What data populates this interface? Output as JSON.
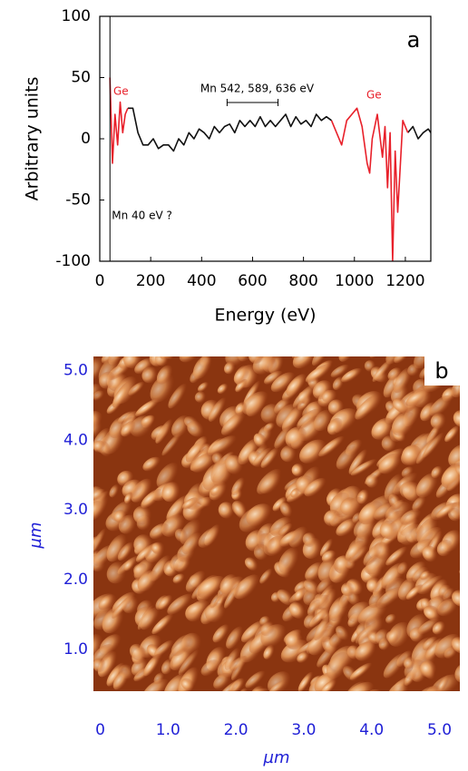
{
  "chart_data": [
    {
      "type": "line",
      "panel_label": "a",
      "xlabel": "Energy (eV)",
      "ylabel": "Arbitrary units",
      "x": [
        40,
        50,
        60,
        70,
        80,
        90,
        100,
        110,
        130,
        150,
        170,
        190,
        210,
        230,
        250,
        270,
        290,
        310,
        330,
        350,
        370,
        390,
        410,
        430,
        450,
        470,
        490,
        510,
        530,
        550,
        570,
        590,
        610,
        630,
        650,
        670,
        690,
        710,
        730,
        750,
        770,
        790,
        810,
        830,
        850,
        870,
        890,
        910,
        930,
        950,
        970,
        990,
        1010,
        1030,
        1050,
        1060,
        1070,
        1090,
        1110,
        1120,
        1130,
        1140,
        1150,
        1160,
        1170,
        1190,
        1210,
        1230,
        1250,
        1270,
        1290,
        1300
      ],
      "series": [
        {
          "color": "#111111",
          "values": [
            null,
            null,
            null,
            null,
            null,
            null,
            null,
            25,
            25,
            5,
            -5,
            -5,
            0,
            -8,
            -5,
            -5,
            -10,
            0,
            -5,
            5,
            0,
            8,
            5,
            0,
            10,
            5,
            10,
            12,
            5,
            15,
            10,
            15,
            10,
            18,
            10,
            15,
            10,
            15,
            20,
            10,
            18,
            12,
            15,
            10,
            20,
            15,
            18,
            15,
            null,
            null,
            null,
            null,
            null,
            null,
            null,
            null,
            null,
            null,
            null,
            null,
            null,
            null,
            null,
            null,
            null,
            null,
            5,
            10,
            0,
            5,
            8,
            5
          ]
        },
        {
          "color": "#e8202a",
          "values": [
            50,
            -20,
            20,
            -5,
            30,
            5,
            20,
            25,
            null,
            null,
            null,
            null,
            null,
            null,
            null,
            null,
            null,
            null,
            null,
            null,
            null,
            null,
            null,
            null,
            null,
            null,
            null,
            null,
            null,
            null,
            null,
            null,
            null,
            null,
            null,
            null,
            null,
            null,
            null,
            null,
            null,
            null,
            null,
            null,
            null,
            null,
            null,
            15,
            5,
            -5,
            15,
            20,
            25,
            10,
            -20,
            -28,
            0,
            20,
            -15,
            10,
            -40,
            5,
            -100,
            -10,
            -60,
            15,
            5,
            null,
            null,
            null,
            null,
            null
          ]
        }
      ],
      "xlim": [
        0,
        1300
      ],
      "ylim": [
        -100,
        100
      ],
      "xticks": [
        0,
        200,
        400,
        600,
        800,
        1000,
        1200
      ],
      "yticks": [
        -100,
        -50,
        0,
        50,
        100
      ],
      "annotations": [
        {
          "text": "Mn 40 eV ?",
          "x": 40
        },
        {
          "text": "Mn 542, 589, 636 eV",
          "x": [
            500,
            700
          ]
        },
        {
          "text": "Ge",
          "color": "#e8202a"
        },
        {
          "text": "Ge",
          "color": "#e8202a"
        }
      ]
    },
    {
      "type": "image",
      "panel_label": "b",
      "xlabel": "µm",
      "ylabel": "µm",
      "tick_color": "#1f1fd6",
      "xlim": [
        -0.1,
        5.3
      ],
      "ylim": [
        0.4,
        5.2
      ],
      "xticks": [
        0,
        {
          "value": 1,
          "label": "1.0"
        },
        {
          "value": 2,
          "label": "2.0"
        },
        {
          "value": 3,
          "label": "3.0"
        },
        {
          "value": 4,
          "label": "4.0"
        },
        {
          "value": 5,
          "label": "5.0"
        }
      ],
      "yticks": [
        {
          "value": 1,
          "label": "1.0"
        },
        {
          "value": 2,
          "label": "2.0"
        },
        {
          "value": 3,
          "label": "3.0"
        },
        {
          "value": 4,
          "label": "4.0"
        },
        {
          "value": 5,
          "label": "5.0"
        }
      ]
    }
  ]
}
